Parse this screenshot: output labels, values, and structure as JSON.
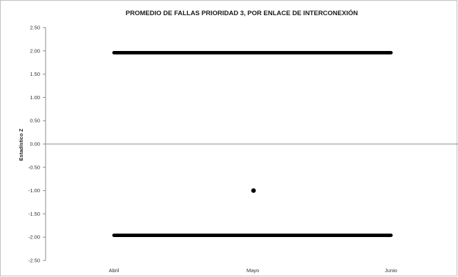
{
  "chart_data": {
    "type": "line",
    "title": "PROMEDIO DE FALLAS PRIORIDAD 3, POR ENLACE DE INTERCONEXIÓN",
    "xlabel": "",
    "ylabel": "Estadístico Z",
    "categories": [
      "Abril",
      "Mayo",
      "Junio"
    ],
    "ylim": [
      -2.5,
      2.5
    ],
    "yticks": [
      "2.50",
      "2.00",
      "1.50",
      "1.00",
      "0.50",
      "0.00",
      "-0.50",
      "-1.00",
      "-1.50",
      "-2.00",
      "-2.50"
    ],
    "grid": false,
    "legend": "none",
    "series": [
      {
        "values": [
          1.96,
          1.96,
          1.96
        ],
        "color": "#000000",
        "style": "line"
      },
      {
        "values": [
          -1.96,
          -1.96,
          -1.96
        ],
        "color": "#000000",
        "style": "line"
      },
      {
        "values": [
          null,
          -1.0,
          null
        ],
        "color": "#000000",
        "style": "marker"
      }
    ]
  }
}
